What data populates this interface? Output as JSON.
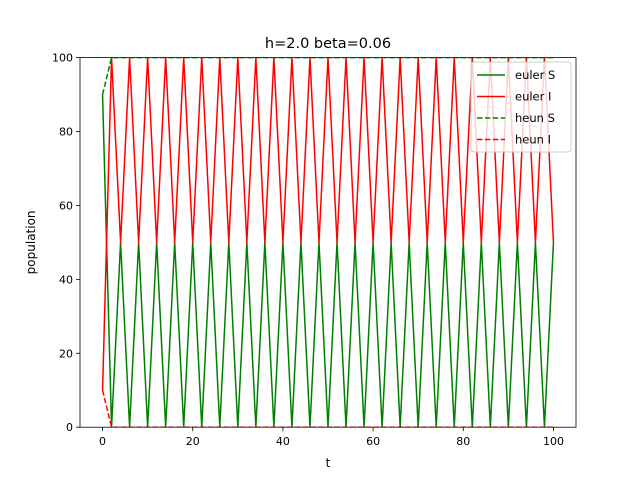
{
  "chart_data": {
    "type": "line",
    "title": "h=2.0 beta=0.06",
    "xlabel": "t",
    "ylabel": "population",
    "xlim": [
      -5,
      105
    ],
    "ylim": [
      0,
      100
    ],
    "x_ticks": [
      0,
      20,
      40,
      60,
      80,
      100
    ],
    "y_ticks": [
      0,
      20,
      40,
      60,
      80,
      100
    ],
    "legend_position": "top-right",
    "series": [
      {
        "name": "euler S",
        "color": "#008000",
        "dash": "solid",
        "x": [
          0,
          2,
          4,
          6,
          8,
          10,
          12,
          14,
          16,
          18,
          20,
          22,
          24,
          26,
          28,
          30,
          32,
          34,
          36,
          38,
          40,
          42,
          44,
          46,
          48,
          50,
          52,
          54,
          56,
          58,
          60,
          62,
          64,
          66,
          68,
          70,
          72,
          74,
          76,
          78,
          80,
          82,
          84,
          86,
          88,
          90,
          92,
          94,
          96,
          98,
          100
        ],
        "values": [
          90,
          0,
          50,
          0,
          50,
          0,
          50,
          0,
          50,
          0,
          50,
          0,
          50,
          0,
          50,
          0,
          50,
          0,
          50,
          0,
          50,
          0,
          50,
          0,
          50,
          0,
          50,
          0,
          50,
          0,
          50,
          0,
          50,
          0,
          50,
          0,
          50,
          0,
          50,
          0,
          50,
          0,
          50,
          0,
          50,
          0,
          50,
          0,
          50,
          0,
          50
        ]
      },
      {
        "name": "euler I",
        "color": "#ff0000",
        "dash": "solid",
        "x": [
          0,
          2,
          4,
          6,
          8,
          10,
          12,
          14,
          16,
          18,
          20,
          22,
          24,
          26,
          28,
          30,
          32,
          34,
          36,
          38,
          40,
          42,
          44,
          46,
          48,
          50,
          52,
          54,
          56,
          58,
          60,
          62,
          64,
          66,
          68,
          70,
          72,
          74,
          76,
          78,
          80,
          82,
          84,
          86,
          88,
          90,
          92,
          94,
          96,
          98,
          100
        ],
        "values": [
          10,
          100,
          50,
          100,
          50,
          100,
          50,
          100,
          50,
          100,
          50,
          100,
          50,
          100,
          50,
          100,
          50,
          100,
          50,
          100,
          50,
          100,
          50,
          100,
          50,
          100,
          50,
          100,
          50,
          100,
          50,
          100,
          50,
          100,
          50,
          100,
          50,
          100,
          50,
          100,
          50,
          100,
          50,
          100,
          50,
          100,
          50,
          100,
          50,
          100,
          50
        ]
      },
      {
        "name": "heun S",
        "color": "#008000",
        "dash": "dashed",
        "x": [
          0,
          2,
          4,
          6,
          8,
          10,
          12,
          14,
          16,
          18,
          20,
          22,
          24,
          26,
          28,
          30,
          32,
          34,
          36,
          38,
          40,
          42,
          44,
          46,
          48,
          50,
          52,
          54,
          56,
          58,
          60,
          62,
          64,
          66,
          68,
          70,
          72,
          74,
          76,
          78,
          80,
          82,
          84,
          86,
          88,
          90,
          92,
          94,
          96,
          98,
          100
        ],
        "values": [
          90,
          100,
          100,
          100,
          100,
          100,
          100,
          100,
          100,
          100,
          100,
          100,
          100,
          100,
          100,
          100,
          100,
          100,
          100,
          100,
          100,
          100,
          100,
          100,
          100,
          100,
          100,
          100,
          100,
          100,
          100,
          100,
          100,
          100,
          100,
          100,
          100,
          100,
          100,
          100,
          100,
          100,
          100,
          100,
          100,
          100,
          100,
          100,
          100,
          100,
          100
        ]
      },
      {
        "name": "heun I",
        "color": "#ff0000",
        "dash": "dashed",
        "x": [
          0,
          2,
          4,
          6,
          8,
          10,
          12,
          14,
          16,
          18,
          20,
          22,
          24,
          26,
          28,
          30,
          32,
          34,
          36,
          38,
          40,
          42,
          44,
          46,
          48,
          50,
          52,
          54,
          56,
          58,
          60,
          62,
          64,
          66,
          68,
          70,
          72,
          74,
          76,
          78,
          80,
          82,
          84,
          86,
          88,
          90,
          92,
          94,
          96,
          98,
          100
        ],
        "values": [
          10,
          0,
          0,
          0,
          0,
          0,
          0,
          0,
          0,
          0,
          0,
          0,
          0,
          0,
          0,
          0,
          0,
          0,
          0,
          0,
          0,
          0,
          0,
          0,
          0,
          0,
          0,
          0,
          0,
          0,
          0,
          0,
          0,
          0,
          0,
          0,
          0,
          0,
          0,
          0,
          0,
          0,
          0,
          0,
          0,
          0,
          0,
          0,
          0,
          0,
          0
        ]
      }
    ]
  }
}
